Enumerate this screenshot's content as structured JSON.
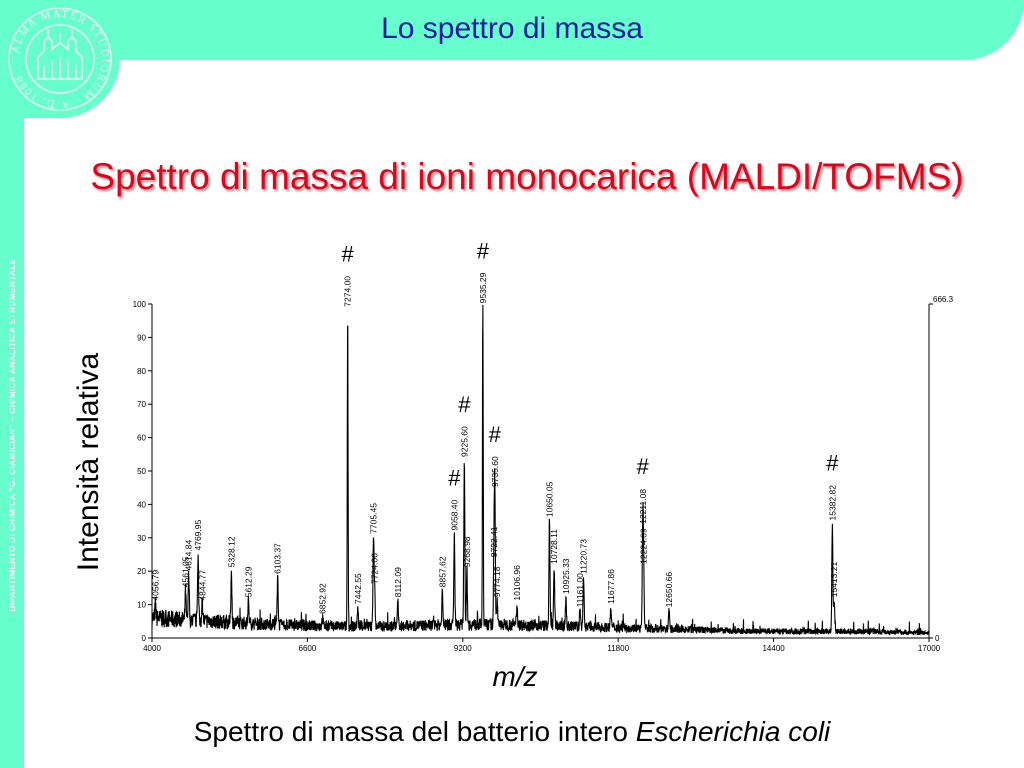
{
  "slide": {
    "title": "Lo spettro di massa",
    "subtitle": "Spettro di massa di ioni monocarica (MALDI/TOFMS)",
    "caption_prefix": "Spettro di massa del batterio intero",
    "caption_species": "Escherichia coli",
    "sidebar_text": "DIPARTIMENTO DI CHIMICA “G. CIAMICIAN” – CHIMICA ANALITICA STRUMENTALE",
    "logo_text": "ALMA MATER STUDIORUM · A.D. 1088",
    "colors": {
      "accent": "#66ffcc",
      "title": "#1a1aa6",
      "subtitle": "#e6001a"
    }
  },
  "chart_data": {
    "type": "line",
    "xlabel": "m/z",
    "ylabel": "Intensità relativa",
    "xlim": [
      4000,
      17000
    ],
    "ylim": [
      0,
      100
    ],
    "xticks": [
      4000,
      6600,
      9200,
      11800,
      14400,
      17000
    ],
    "yticks": [
      0,
      10,
      20,
      30,
      40,
      50,
      60,
      70,
      80,
      90,
      100
    ],
    "right_axis_labels": {
      "top": "666.3",
      "bottom": "0"
    },
    "grid": false,
    "baseline": [
      [
        4000,
        6
      ],
      [
        5000,
        5
      ],
      [
        6000,
        4
      ],
      [
        7000,
        3.5
      ],
      [
        8000,
        3.5
      ],
      [
        9000,
        4
      ],
      [
        10000,
        4
      ],
      [
        11000,
        3.5
      ],
      [
        12000,
        3
      ],
      [
        13000,
        2.5
      ],
      [
        14000,
        2
      ],
      [
        15000,
        2
      ],
      [
        16000,
        2
      ],
      [
        17000,
        1.5
      ]
    ],
    "peaks": [
      {
        "mz": "4056.79",
        "x": 4056.79,
        "y": 10,
        "marked": false
      },
      {
        "mz": "4561.05",
        "x": 4561.05,
        "y": 14,
        "marked": false
      },
      {
        "mz": "4614.84",
        "x": 4614.84,
        "y": 19,
        "marked": false
      },
      {
        "mz": "4769.95",
        "x": 4769.95,
        "y": 25,
        "marked": false
      },
      {
        "mz": "4844.77",
        "x": 4844.77,
        "y": 10,
        "marked": false
      },
      {
        "mz": "5328.12",
        "x": 5328.12,
        "y": 20,
        "marked": false
      },
      {
        "mz": "5612.29",
        "x": 5612.29,
        "y": 11,
        "marked": false
      },
      {
        "mz": "6103.37",
        "x": 6103.37,
        "y": 18,
        "marked": false
      },
      {
        "mz": "6852.92",
        "x": 6852.92,
        "y": 6,
        "marked": false
      },
      {
        "mz": "7274.00",
        "x": 7274.0,
        "y": 98,
        "marked": true
      },
      {
        "mz": "7442.55",
        "x": 7442.55,
        "y": 9,
        "marked": false
      },
      {
        "mz": "7705.45",
        "x": 7705.45,
        "y": 30,
        "marked": false
      },
      {
        "mz": "7724.06",
        "x": 7724.06,
        "y": 15,
        "marked": false
      },
      {
        "mz": "8112.09",
        "x": 8112.09,
        "y": 11,
        "marked": false
      },
      {
        "mz": "8857.62",
        "x": 8857.62,
        "y": 14,
        "marked": false
      },
      {
        "mz": "9058.40",
        "x": 9058.4,
        "y": 31,
        "marked": true
      },
      {
        "mz": "9225.60",
        "x": 9225.6,
        "y": 53,
        "marked": true
      },
      {
        "mz": "9268.98",
        "x": 9268.98,
        "y": 20,
        "marked": false
      },
      {
        "mz": "9535.29",
        "x": 9535.29,
        "y": 99,
        "marked": true
      },
      {
        "mz": "9722.41",
        "x": 9722.41,
        "y": 23,
        "marked": false
      },
      {
        "mz": "9735.60",
        "x": 9735.6,
        "y": 44,
        "marked": true
      },
      {
        "mz": "9774.18",
        "x": 9774.18,
        "y": 11,
        "marked": false
      },
      {
        "mz": "10106.96",
        "x": 10106.96,
        "y": 10,
        "marked": false
      },
      {
        "mz": "10650.05",
        "x": 10650.05,
        "y": 35,
        "marked": false
      },
      {
        "mz": "10728.11",
        "x": 10728.11,
        "y": 21,
        "marked": false
      },
      {
        "mz": "10925.33",
        "x": 10925.33,
        "y": 12,
        "marked": false
      },
      {
        "mz": "11161.00",
        "x": 11161.0,
        "y": 8,
        "marked": false
      },
      {
        "mz": "11220.73",
        "x": 11220.73,
        "y": 18,
        "marked": false
      },
      {
        "mz": "11677.86",
        "x": 11677.86,
        "y": 9,
        "marked": false
      },
      {
        "mz": "12211.08",
        "x": 12211.08,
        "y": 33,
        "marked": true
      },
      {
        "mz": "12224.09",
        "x": 12224.09,
        "y": 21,
        "marked": false
      },
      {
        "mz": "12650.66",
        "x": 12650.66,
        "y": 8,
        "marked": false
      },
      {
        "mz": "15382.82",
        "x": 15382.82,
        "y": 34,
        "marked": true
      },
      {
        "mz": "15413.21",
        "x": 15413.21,
        "y": 11,
        "marked": false
      }
    ],
    "mark_symbol": "#"
  }
}
